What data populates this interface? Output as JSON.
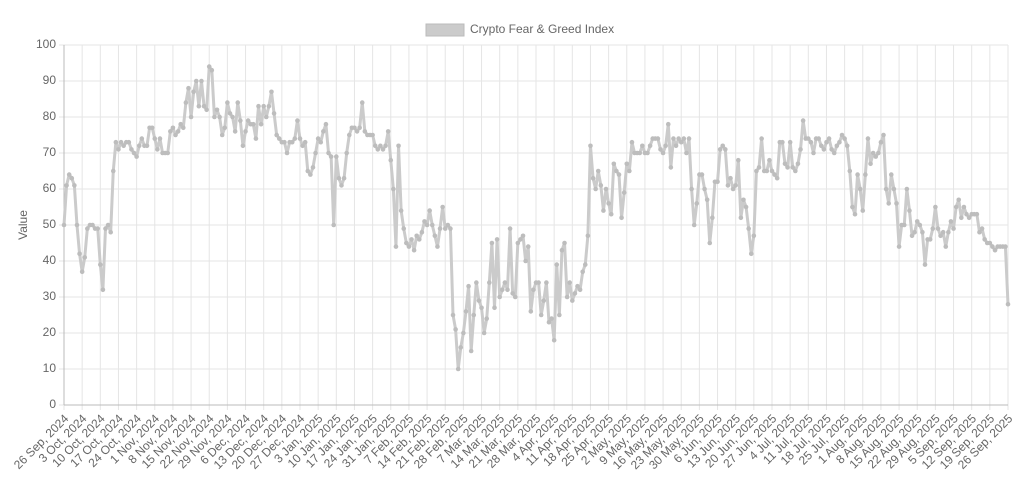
{
  "chart_data": {
    "type": "line",
    "y_label": "Value",
    "legend": "top",
    "grid": true,
    "ylim": [
      0,
      100
    ],
    "yticks": [
      0,
      10,
      20,
      30,
      40,
      50,
      60,
      70,
      80,
      90,
      100
    ],
    "categories": [
      "26 Sep, 2024",
      null,
      null,
      null,
      null,
      null,
      null,
      "3 Oct, 2024",
      null,
      null,
      null,
      null,
      null,
      null,
      "10 Oct, 2024",
      null,
      null,
      null,
      null,
      null,
      null,
      "17 Oct, 2024",
      null,
      null,
      null,
      null,
      null,
      null,
      "24 Oct, 2024",
      null,
      null,
      null,
      null,
      null,
      null,
      "1 Nov, 2024",
      null,
      null,
      null,
      null,
      null,
      null,
      "8 Nov, 2024",
      null,
      null,
      null,
      null,
      null,
      null,
      "15 Nov, 2024",
      null,
      null,
      null,
      null,
      null,
      null,
      "22 Nov, 2024",
      null,
      null,
      null,
      null,
      null,
      null,
      "29 Nov, 2024",
      null,
      null,
      null,
      null,
      null,
      null,
      "6 Dec, 2024",
      null,
      null,
      null,
      null,
      null,
      null,
      "13 Dec, 2024",
      null,
      null,
      null,
      null,
      null,
      null,
      "20 Dec, 2024",
      null,
      null,
      null,
      null,
      null,
      null,
      "27 Dec, 2024",
      null,
      null,
      null,
      null,
      null,
      null,
      "3 Jan, 2025",
      null,
      null,
      null,
      null,
      null,
      null,
      "10 Jan, 2025",
      null,
      null,
      null,
      null,
      null,
      null,
      "17 Jan, 2025",
      null,
      null,
      null,
      null,
      null,
      null,
      "24 Jan, 2025",
      null,
      null,
      null,
      null,
      null,
      null,
      "31 Jan, 2025",
      null,
      null,
      null,
      null,
      null,
      null,
      "7 Feb, 2025",
      null,
      null,
      null,
      null,
      null,
      null,
      "14 Feb, 2025",
      null,
      null,
      null,
      null,
      null,
      null,
      "21 Feb, 2025",
      null,
      null,
      null,
      null,
      null,
      null,
      "28 Feb, 2025",
      null,
      null,
      null,
      null,
      null,
      null,
      "7 Mar, 2025",
      null,
      null,
      null,
      null,
      null,
      null,
      "14 Mar, 2025",
      null,
      null,
      null,
      null,
      null,
      null,
      "21 Mar, 2025",
      null,
      null,
      null,
      null,
      null,
      null,
      "28 Mar, 2025",
      null,
      null,
      null,
      null,
      null,
      null,
      "4 Apr, 2025",
      null,
      null,
      null,
      null,
      null,
      null,
      "11 Apr, 2025",
      null,
      null,
      null,
      null,
      null,
      null,
      "18 Apr, 2025",
      null,
      null,
      null,
      null,
      null,
      null,
      "25 Apr, 2025",
      null,
      null,
      null,
      null,
      null,
      null,
      "2 May, 2025",
      null,
      null,
      null,
      null,
      null,
      null,
      "9 May, 2025",
      null,
      null,
      null,
      null,
      null,
      null,
      "16 May, 2025",
      null,
      null,
      null,
      null,
      null,
      null,
      "23 May, 2025",
      null,
      null,
      null,
      null,
      null,
      null,
      "30 May, 2025",
      null,
      null,
      null,
      null,
      null,
      null,
      "6 Jun, 2025",
      null,
      null,
      null,
      null,
      null,
      null,
      "13 Jun, 2025",
      null,
      null,
      null,
      null,
      null,
      null,
      "20 Jun, 2025",
      null,
      null,
      null,
      null,
      null,
      null,
      "27 Jun, 2025",
      null,
      null,
      null,
      null,
      null,
      null,
      "4 Jul, 2025",
      null,
      null,
      null,
      null,
      null,
      null,
      "11 Jul, 2025",
      null,
      null,
      null,
      null,
      null,
      null,
      "18 Jul, 2025",
      null,
      null,
      null,
      null,
      null,
      null,
      "25 Jul, 2025",
      null,
      null,
      null,
      null,
      null,
      null,
      "1 Aug, 2025",
      null,
      null,
      null,
      null,
      null,
      null,
      "8 Aug, 2025",
      null,
      null,
      null,
      null,
      null,
      null,
      "15 Aug, 2025",
      null,
      null,
      null,
      null,
      null,
      null,
      "22 Aug, 2025",
      null,
      null,
      null,
      null,
      null,
      null,
      "29 Aug, 2025",
      null,
      null,
      null,
      null,
      null,
      null,
      "5 Sep, 2025",
      null,
      null,
      null,
      null,
      null,
      null,
      "12 Sep, 2025",
      null,
      null,
      null,
      null,
      null,
      null,
      "19 Sep, 2025",
      null,
      null,
      null,
      null,
      null,
      null,
      "26 Sep, 2025"
    ],
    "series": [
      {
        "name": "Crypto Fear & Greed Index",
        "color": "#cbcbcb",
        "values": [
          50,
          61,
          64,
          63,
          61,
          50,
          42,
          37,
          41,
          49,
          50,
          50,
          49,
          49,
          39,
          32,
          49,
          50,
          48,
          65,
          73,
          71,
          73,
          72,
          73,
          73,
          71,
          70,
          69,
          72,
          74,
          72,
          72,
          77,
          77,
          74,
          71,
          74,
          70,
          70,
          70,
          76,
          77,
          75,
          76,
          78,
          77,
          84,
          88,
          80,
          87,
          90,
          83,
          90,
          83,
          82,
          94,
          93,
          80,
          82,
          80,
          75,
          77,
          84,
          81,
          80,
          76,
          84,
          79,
          72,
          76,
          79,
          78,
          78,
          74,
          83,
          78,
          83,
          80,
          83,
          87,
          81,
          75,
          74,
          73,
          73,
          70,
          73,
          73,
          74,
          79,
          74,
          72,
          73,
          65,
          64,
          66,
          70,
          74,
          73,
          76,
          78,
          70,
          69,
          50,
          69,
          63,
          61,
          63,
          70,
          75,
          77,
          77,
          76,
          77,
          84,
          76,
          75,
          75,
          75,
          72,
          71,
          72,
          71,
          72,
          76,
          68,
          60,
          44,
          72,
          54,
          49,
          45,
          44,
          46,
          43,
          47,
          46,
          48,
          51,
          50,
          54,
          50,
          47,
          44,
          49,
          55,
          49,
          50,
          49,
          25,
          21,
          10,
          16,
          20,
          26,
          33,
          15,
          25,
          34,
          29,
          27,
          20,
          24,
          34,
          45,
          27,
          46,
          30,
          32,
          34,
          32,
          49,
          31,
          30,
          45,
          46,
          47,
          40,
          44,
          26,
          32,
          34,
          34,
          25,
          29,
          34,
          23,
          24,
          18,
          39,
          25,
          43,
          45,
          30,
          34,
          29,
          31,
          33,
          32,
          37,
          39,
          47,
          72,
          63,
          60,
          65,
          61,
          54,
          60,
          56,
          53,
          67,
          65,
          64,
          52,
          59,
          67,
          65,
          73,
          70,
          70,
          70,
          72,
          70,
          70,
          72,
          74,
          74,
          74,
          71,
          70,
          72,
          78,
          66,
          74,
          72,
          74,
          73,
          74,
          70,
          74,
          60,
          50,
          56,
          64,
          64,
          60,
          57,
          45,
          52,
          62,
          62,
          71,
          72,
          71,
          61,
          63,
          60,
          61,
          68,
          52,
          57,
          55,
          49,
          42,
          47,
          65,
          66,
          74,
          65,
          65,
          68,
          65,
          64,
          63,
          73,
          73,
          67,
          66,
          73,
          66,
          65,
          67,
          71,
          79,
          74,
          74,
          73,
          70,
          74,
          74,
          72,
          71,
          73,
          74,
          71,
          70,
          72,
          73,
          75,
          74,
          72,
          65,
          55,
          53,
          64,
          60,
          54,
          64,
          74,
          67,
          70,
          69,
          70,
          73,
          75,
          60,
          56,
          64,
          60,
          56,
          44,
          50,
          50,
          60,
          54,
          47,
          48,
          51,
          50,
          48,
          39,
          46,
          46,
          49,
          55,
          49,
          47,
          48,
          44,
          48,
          51,
          49,
          55,
          57,
          52,
          55,
          53,
          52,
          53,
          53,
          53,
          48,
          49,
          46,
          45,
          45,
          44,
          43,
          44,
          44,
          44,
          44,
          28
        ]
      }
    ]
  }
}
